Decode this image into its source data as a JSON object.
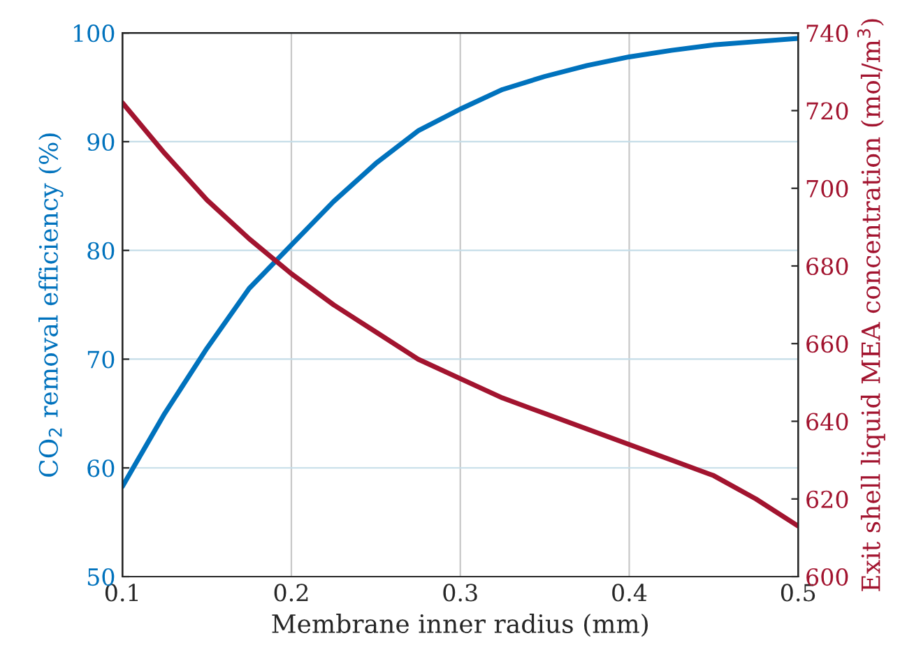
{
  "chart_data": {
    "type": "line",
    "xlabel": "Membrane inner radius (mm)",
    "ylabel": "CO$_{2}$ removal efficiency (%)",
    "y2label": "Exit shell liquid MEA concentration (mol/m$^{3}$)",
    "x": [
      0.1,
      0.125,
      0.15,
      0.175,
      0.2,
      0.225,
      0.25,
      0.275,
      0.3,
      0.325,
      0.35,
      0.375,
      0.4,
      0.425,
      0.45,
      0.475,
      0.5
    ],
    "series": [
      {
        "color": "#0072bd",
        "values": [
          58.3,
          65,
          71,
          76.5,
          80.5,
          84.5,
          88,
          91,
          93,
          94.8,
          96,
          97,
          97.8,
          98.4,
          98.9,
          99.2,
          99.5
        ]
      },
      {
        "color": "#a2142f",
        "axis": "y2",
        "values": [
          722,
          709,
          697,
          687,
          678,
          670,
          663,
          656,
          651,
          646,
          642,
          638,
          634,
          630,
          626,
          620,
          613
        ]
      }
    ],
    "xlim": [
      0.1,
      0.5
    ],
    "xticks": [
      0.1,
      0.2,
      0.3,
      0.4,
      0.5
    ],
    "ylim": [
      50,
      100
    ],
    "yticks": [
      50,
      60,
      70,
      80,
      90,
      100
    ],
    "y2lim": [
      600,
      740
    ],
    "y2ticks": [
      600,
      620,
      640,
      660,
      680,
      700,
      720,
      740
    ],
    "grid": true,
    "line_style": "solid"
  }
}
